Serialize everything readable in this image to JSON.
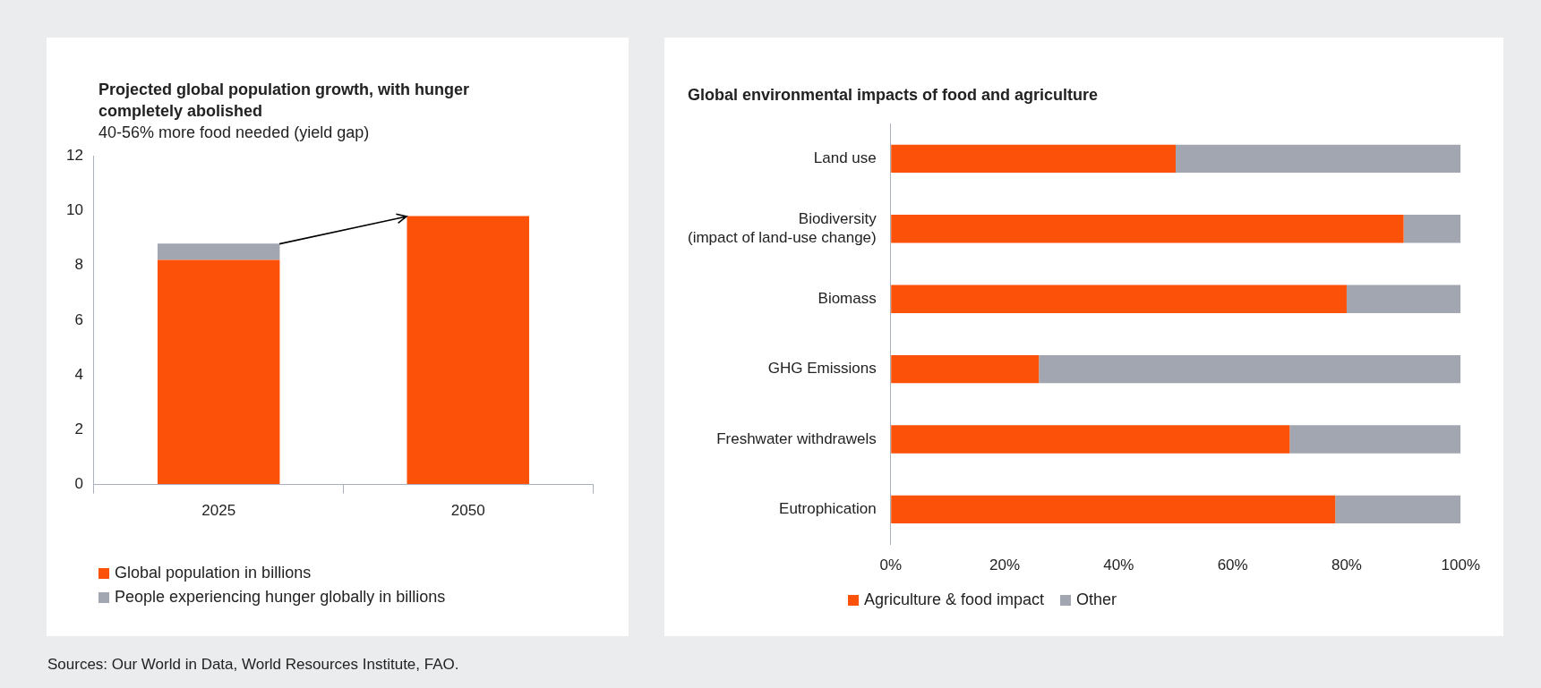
{
  "chart_data": [
    {
      "type": "bar",
      "title": "Projected global population growth, with hunger completely abolished",
      "subtitle": "40-56% more food needed (yield gap)",
      "categories": [
        "2025",
        "2050"
      ],
      "stacked": true,
      "series": [
        {
          "name": "Global population in billions",
          "color": "#fc5108",
          "values": [
            8.2,
            9.8
          ]
        },
        {
          "name": "People experiencing hunger globally in billions",
          "color": "#a1a6b0",
          "values": [
            0.6,
            null
          ]
        }
      ],
      "ylim": [
        0,
        12
      ],
      "yticks": [
        0,
        2,
        4,
        6,
        8,
        10,
        12
      ],
      "grid": false,
      "legend": "bottom",
      "annotations": [
        "Sources: Our World in Data, World Resources Institute, FAO."
      ]
    },
    {
      "type": "bar",
      "title": "Global environmental impacts of food and agriculture",
      "orientation": "horizontal",
      "stacked": true,
      "categories": [
        "Land use",
        "Biodiversity\n(impact of land-use change)",
        "Biomass",
        "GHG Emissions",
        "Freshwater withdrawels",
        "Eutrophication"
      ],
      "series": [
        {
          "name": "Agriculture & food impact",
          "color": "#fc5108",
          "values": [
            50,
            90,
            80,
            26,
            70,
            78
          ]
        },
        {
          "name": "Other",
          "color": "#a1a6b0",
          "values": [
            50,
            10,
            20,
            74,
            30,
            22
          ]
        }
      ],
      "xlim": [
        0,
        100
      ],
      "xticks": [
        {
          "value": 0,
          "label": "0%"
        },
        {
          "value": 20,
          "label": "20%"
        },
        {
          "value": 40,
          "label": "40%"
        },
        {
          "value": 60,
          "label": "60%"
        },
        {
          "value": 80,
          "label": "80%"
        },
        {
          "value": 100,
          "label": "100%"
        }
      ],
      "grid": false,
      "legend": "bottom"
    }
  ]
}
